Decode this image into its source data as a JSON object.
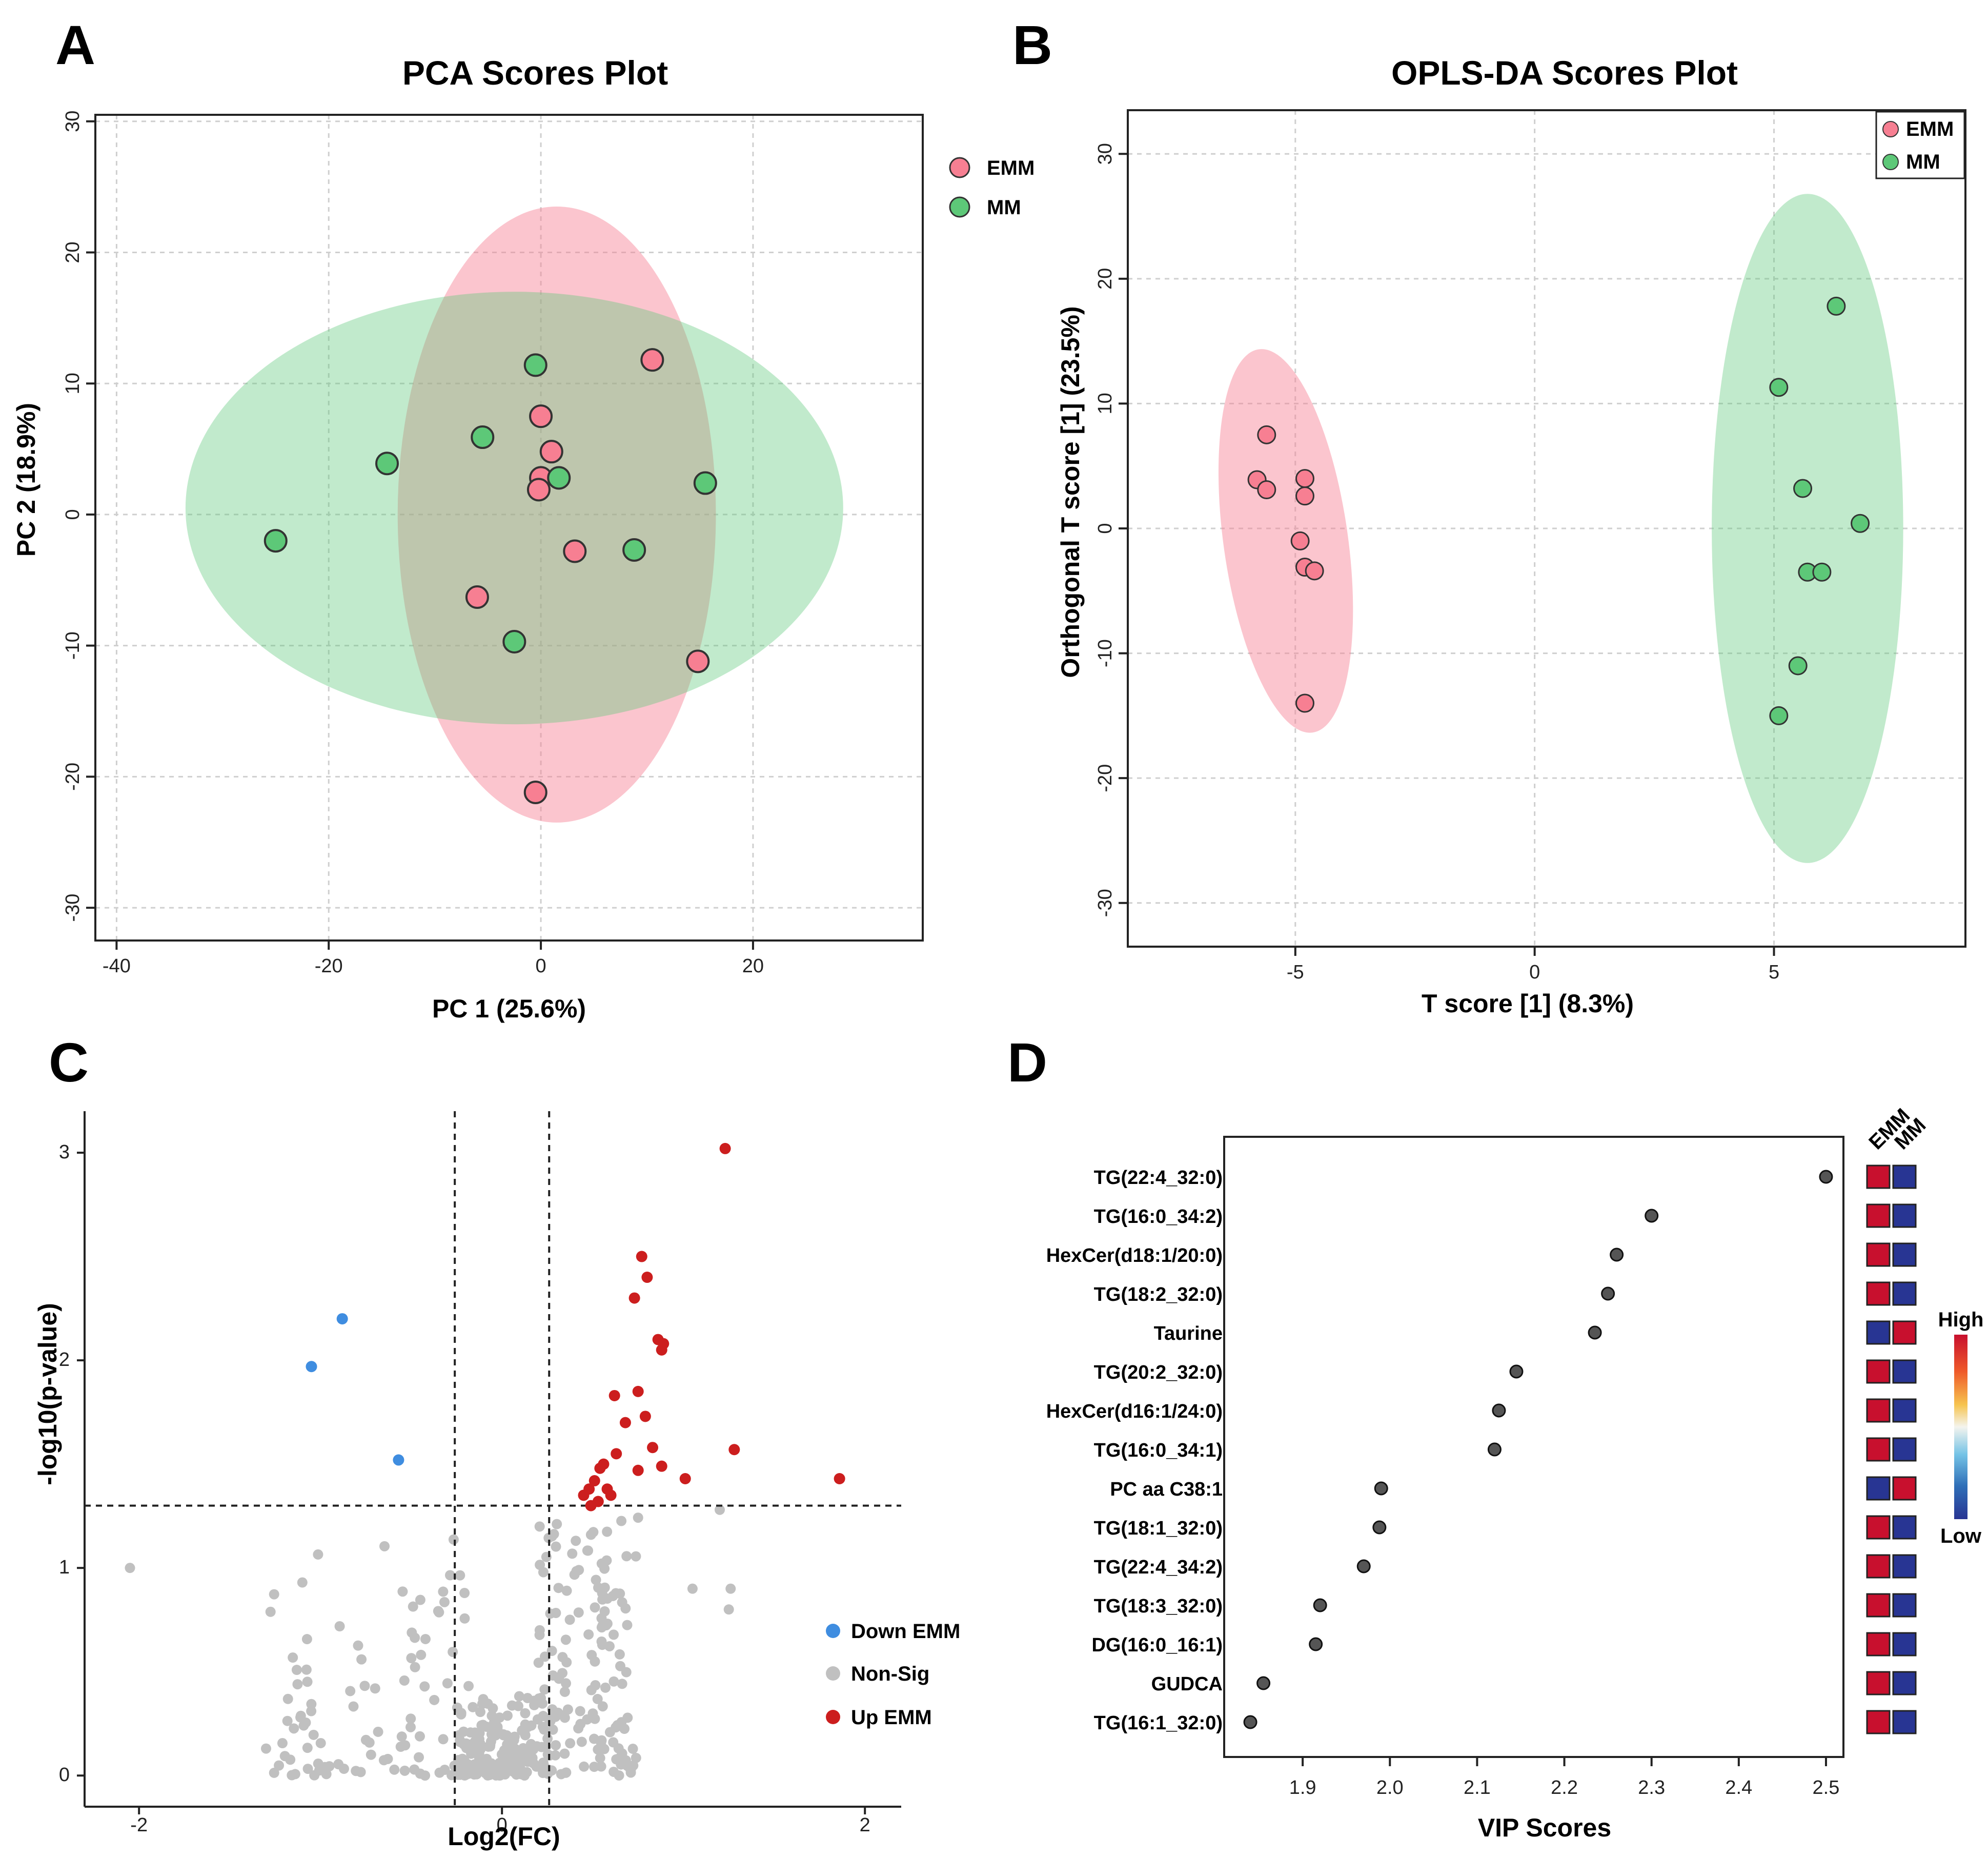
{
  "panels": {
    "A": {
      "label": "A",
      "chart_data": {
        "type": "scatter",
        "title": "PCA Scores Plot",
        "xlabel": "PC 1 (25.6%)",
        "ylabel": "PC 2 (18.9%)",
        "xlim": [
          -42,
          36
        ],
        "ylim": [
          -32.5,
          30.5
        ],
        "xticks": [
          -40,
          -20,
          0,
          20
        ],
        "yticks": [
          -30,
          -20,
          -10,
          0,
          10,
          20,
          30
        ],
        "xtick_labels": [
          "-40",
          "-20",
          "0",
          "20"
        ],
        "ytick_labels": [
          "-30",
          "-20",
          "-10",
          "0",
          "10",
          "20",
          "30"
        ],
        "grid": true,
        "legend_position": "outside-right",
        "series": [
          {
            "name": "EMM",
            "color": "#f77f92",
            "ellipse": {
              "cx": 1.5,
              "cy": 0,
              "rx": 15,
              "ry": 23.5
            },
            "points": [
              [
                10.5,
                11.8
              ],
              [
                0,
                7.5
              ],
              [
                1,
                4.8
              ],
              [
                0,
                2.8
              ],
              [
                -0.2,
                1.9
              ],
              [
                3.2,
                -2.8
              ],
              [
                -6,
                -6.3
              ],
              [
                14.8,
                -11.2
              ],
              [
                -0.5,
                -21.2
              ]
            ]
          },
          {
            "name": "MM",
            "color": "#5dc878",
            "ellipse": {
              "cx": -2.5,
              "cy": 0.5,
              "rx": 31,
              "ry": 16.5
            },
            "points": [
              [
                -0.5,
                11.4
              ],
              [
                -5.5,
                5.9
              ],
              [
                -14.5,
                3.9
              ],
              [
                1.7,
                2.8
              ],
              [
                15.5,
                2.4
              ],
              [
                -25,
                -2
              ],
              [
                8.8,
                -2.7
              ],
              [
                -2.5,
                -9.7
              ]
            ]
          }
        ]
      }
    },
    "B": {
      "label": "B",
      "chart_data": {
        "type": "scatter",
        "title": "OPLS-DA Scores Plot",
        "xlabel": "T score [1] (8.3%)",
        "ylabel": "Orthogonal T score [1] (23.5%)",
        "xlim": [
          -8.5,
          9.0
        ],
        "ylim": [
          -33.5,
          33.5
        ],
        "xticks": [
          -5,
          0,
          5
        ],
        "yticks": [
          -30,
          -20,
          -10,
          0,
          10,
          20,
          30
        ],
        "xtick_labels": [
          "-5",
          "0",
          "5"
        ],
        "ytick_labels": [
          "-30",
          "-20",
          "-10",
          "0",
          "10",
          "20",
          "30"
        ],
        "grid": true,
        "legend_position": "top-right",
        "series": [
          {
            "name": "EMM",
            "color": "#f77f92",
            "ellipse": {
              "cx": -5.2,
              "cy": -1,
              "rx": 1.3,
              "ry": 15.5,
              "angle": 8
            },
            "points": [
              [
                -5.6,
                7.5
              ],
              [
                -5.8,
                3.9
              ],
              [
                -5.6,
                3.1
              ],
              [
                -4.8,
                4
              ],
              [
                -4.8,
                2.6
              ],
              [
                -4.9,
                -1
              ],
              [
                -4.8,
                -3.1
              ],
              [
                -4.6,
                -3.4
              ],
              [
                -4.8,
                -14
              ]
            ]
          },
          {
            "name": "MM",
            "color": "#5dc878",
            "ellipse": {
              "cx": 5.7,
              "cy": 0,
              "rx": 2.0,
              "ry": 26.8
            },
            "points": [
              [
                6.3,
                17.8
              ],
              [
                5.1,
                11.3
              ],
              [
                5.6,
                3.2
              ],
              [
                6.8,
                0.4
              ],
              [
                5.7,
                -3.5
              ],
              [
                6,
                -3.5
              ],
              [
                5.5,
                -11
              ],
              [
                5.1,
                -15
              ]
            ]
          }
        ]
      }
    },
    "C": {
      "label": "C",
      "chart_data": {
        "type": "scatter",
        "xlabel": "Log2(FC)",
        "ylabel": "-log10(p-value)",
        "xlim": [
          -2.3,
          2.2
        ],
        "ylim": [
          -0.15,
          3.2
        ],
        "xticks": [
          -2,
          0,
          2
        ],
        "yticks": [
          0,
          1,
          2,
          3
        ],
        "xtick_labels": [
          "-2",
          "0",
          "2"
        ],
        "ytick_labels": [
          "0",
          "1",
          "2",
          "3"
        ],
        "thresholds": {
          "fc": [
            -0.26,
            0.26
          ],
          "p": 1.3
        },
        "legend_position": "bottom-right",
        "series": [
          {
            "name": "Down EMM",
            "color": "#3f8de0",
            "points": [
              [
                -0.88,
                2.2
              ],
              [
                -1.05,
                1.97
              ],
              [
                -0.57,
                1.52
              ]
            ]
          },
          {
            "name": "Non-Sig",
            "color": "#c0c0c0",
            "points": []
          },
          {
            "name": "Up EMM",
            "color": "#cc1e1e",
            "points": [
              [
                1.23,
                3.02
              ],
              [
                0.77,
                2.5
              ],
              [
                0.8,
                2.4
              ],
              [
                0.73,
                2.3
              ],
              [
                0.86,
                2.1
              ],
              [
                0.88,
                2.05
              ],
              [
                0.89,
                2.08
              ],
              [
                0.75,
                1.85
              ],
              [
                0.62,
                1.83
              ],
              [
                0.79,
                1.73
              ],
              [
                0.68,
                1.7
              ],
              [
                0.83,
                1.58
              ],
              [
                1.28,
                1.57
              ],
              [
                0.63,
                1.55
              ],
              [
                0.56,
                1.5
              ],
              [
                0.54,
                1.48
              ],
              [
                0.75,
                1.47
              ],
              [
                0.88,
                1.49
              ],
              [
                1.01,
                1.43
              ],
              [
                1.86,
                1.43
              ],
              [
                0.51,
                1.42
              ],
              [
                0.48,
                1.38
              ],
              [
                0.58,
                1.38
              ],
              [
                0.6,
                1.35
              ],
              [
                0.45,
                1.35
              ],
              [
                0.53,
                1.32
              ],
              [
                0.49,
                1.3
              ]
            ]
          }
        ]
      }
    },
    "D": {
      "label": "D",
      "chart_data": {
        "type": "scatter",
        "xlabel": "VIP Scores",
        "xlim": [
          1.81,
          2.52
        ],
        "xticks": [
          1.9,
          2.0,
          2.1,
          2.2,
          2.3,
          2.4,
          2.5
        ],
        "xtick_labels": [
          "1.9",
          "2.0",
          "2.1",
          "2.2",
          "2.3",
          "2.4",
          "2.5"
        ],
        "features": [
          "TG(22:4_32:0)",
          "TG(16:0_34:2)",
          "HexCer(d18:1/20:0)",
          "TG(18:2_32:0)",
          "Taurine",
          "TG(20:2_32:0)",
          "HexCer(d16:1/24:0)",
          "TG(16:0_34:1)",
          "PC aa C38:1",
          "TG(18:1_32:0)",
          "TG(22:4_34:2)",
          "TG(18:3_32:0)",
          "DG(16:0_16:1)",
          "GUDCA",
          "TG(16:1_32:0)"
        ],
        "values": [
          2.5,
          2.3,
          2.26,
          2.25,
          2.235,
          2.145,
          2.125,
          2.12,
          1.99,
          1.988,
          1.97,
          1.92,
          1.915,
          1.855,
          1.84
        ],
        "heatmap_columns": [
          "EMM",
          "MM"
        ],
        "heatmap": [
          [
            "high",
            "low"
          ],
          [
            "high",
            "low"
          ],
          [
            "high",
            "low"
          ],
          [
            "high",
            "low"
          ],
          [
            "low",
            "high"
          ],
          [
            "high",
            "low"
          ],
          [
            "high",
            "low"
          ],
          [
            "high",
            "low"
          ],
          [
            "low",
            "high"
          ],
          [
            "high",
            "low"
          ],
          [
            "high",
            "low"
          ],
          [
            "high",
            "low"
          ],
          [
            "high",
            "low"
          ],
          [
            "high",
            "low"
          ],
          [
            "high",
            "low"
          ]
        ],
        "colorbar": {
          "high_label": "High",
          "low_label": "Low",
          "high_color": "#c8102e",
          "low_color": "#283593"
        }
      }
    }
  }
}
